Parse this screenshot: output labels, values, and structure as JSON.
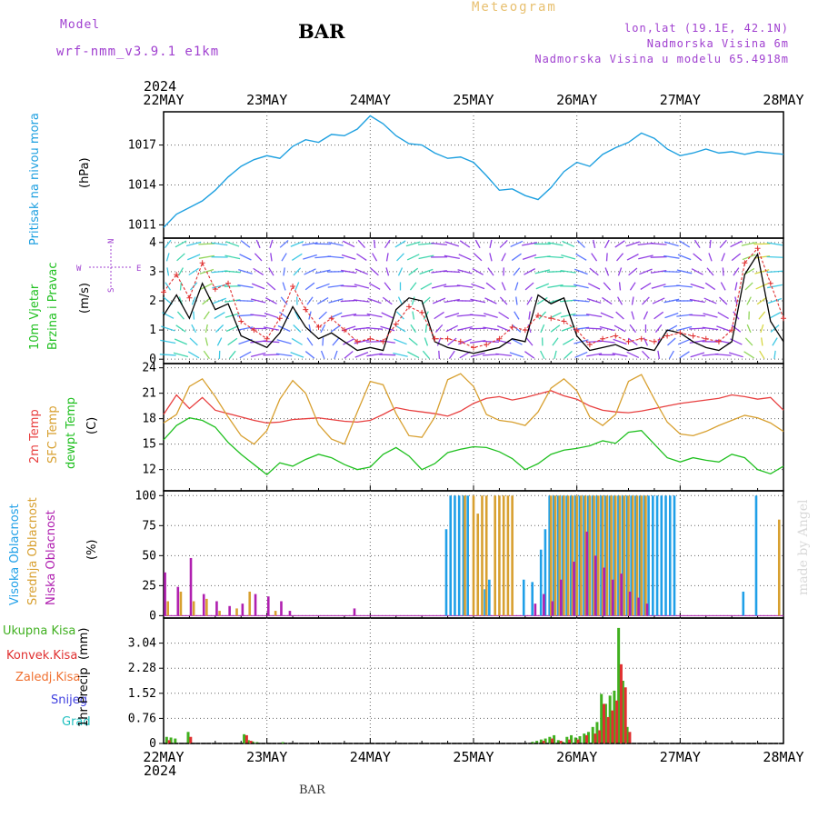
{
  "header": {
    "model_label": "Model",
    "model_name": "wrf-nmm_v3.9.1 e1km",
    "station": "BAR",
    "title": "Meteogram",
    "coords": "lon,lat (19.1E, 42.1N)",
    "altitude": "Nadmorska Visina 6m",
    "model_altitude": "Nadmorska Visina u modelu 65.4918m",
    "footer_station": "BAR",
    "credit": "made by Angel"
  },
  "colors": {
    "pressure": "#1ea0e0",
    "temp2m": "#e84040",
    "sfc_temp": "#d8a030",
    "dewpt": "#20c020",
    "wind_speed": "#000000",
    "gust": "#e03030",
    "high_cloud": "#20a0e8",
    "mid_cloud": "#d8a030",
    "low_cloud": "#b020b0",
    "total_precip": "#40b020",
    "conv_precip": "#e03030",
    "frz_precip": "#f07030",
    "snow": "#4040e0",
    "hail": "#20c0c0",
    "header_purple": "#a040d0",
    "title_gold": "#e8c070"
  },
  "time_axis": {
    "year": "2024",
    "labels": [
      "22MAY",
      "23MAY",
      "24MAY",
      "25MAY",
      "26MAY",
      "27MAY",
      "28MAY"
    ]
  },
  "wind_legend": {
    "n": "N",
    "s": "S",
    "w": "W",
    "e": "E"
  },
  "chart_data": [
    {
      "type": "line",
      "panel": "pressure",
      "ylabel_name": "Pritisak na nivou mora",
      "ylabel_unit": "(hPa)",
      "yticks": [
        "1011",
        "1014",
        "1017"
      ],
      "ylim": [
        1010,
        1019.5
      ],
      "xlim": [
        0,
        144
      ],
      "series": [
        {
          "name": "Pritisak na nivou mora",
          "x": [
            0,
            3,
            6,
            9,
            12,
            15,
            18,
            21,
            24,
            27,
            30,
            33,
            36,
            39,
            42,
            45,
            48,
            51,
            54,
            57,
            60,
            63,
            66,
            69,
            72,
            75,
            78,
            81,
            84,
            87,
            90,
            93,
            96,
            99,
            102,
            105,
            108,
            111,
            114,
            117,
            120,
            123,
            126,
            129,
            132,
            135,
            138,
            141,
            144
          ],
          "y": [
            1010.8,
            1011.8,
            1012.3,
            1012.8,
            1013.6,
            1014.6,
            1015.4,
            1015.9,
            1016.2,
            1016.0,
            1016.9,
            1017.4,
            1017.2,
            1017.8,
            1017.7,
            1018.2,
            1019.2,
            1018.6,
            1017.7,
            1017.1,
            1017.0,
            1016.4,
            1016.0,
            1016.1,
            1015.7,
            1014.7,
            1013.6,
            1013.7,
            1013.2,
            1012.9,
            1013.8,
            1015.0,
            1015.7,
            1015.4,
            1016.3,
            1016.8,
            1017.2,
            1017.9,
            1017.5,
            1016.7,
            1016.2,
            1016.4,
            1016.7,
            1016.4,
            1016.5,
            1016.3,
            1016.5,
            1016.4,
            1016.3
          ]
        }
      ]
    },
    {
      "type": "line",
      "panel": "wind",
      "ylabel_name": "10m Vjetar",
      "ylabel_name2": "Brzina i Pravac",
      "ylabel_unit": "(m/s)",
      "yticks": [
        "0",
        "1",
        "2",
        "3",
        "4"
      ],
      "ylim": [
        -0.15,
        4.15
      ],
      "xlim": [
        0,
        144
      ],
      "series": [
        {
          "name": "Brzina",
          "x": [
            0,
            3,
            6,
            9,
            12,
            15,
            18,
            21,
            24,
            27,
            30,
            33,
            36,
            39,
            42,
            45,
            48,
            51,
            54,
            57,
            60,
            63,
            66,
            69,
            72,
            75,
            78,
            81,
            84,
            87,
            90,
            93,
            96,
            99,
            102,
            105,
            108,
            111,
            114,
            117,
            120,
            123,
            126,
            129,
            132,
            135,
            138,
            141,
            144
          ],
          "y": [
            1.5,
            2.2,
            1.4,
            2.6,
            1.7,
            1.9,
            0.8,
            0.6,
            0.4,
            0.9,
            1.8,
            1.1,
            0.7,
            0.9,
            0.6,
            0.3,
            0.4,
            0.3,
            1.7,
            2.1,
            2.0,
            0.6,
            0.4,
            0.3,
            0.2,
            0.3,
            0.4,
            0.7,
            0.6,
            2.2,
            1.9,
            2.1,
            0.8,
            0.3,
            0.4,
            0.5,
            0.3,
            0.4,
            0.3,
            1.0,
            0.9,
            0.6,
            0.4,
            0.3,
            0.6,
            2.9,
            3.6,
            1.3,
            0.6
          ]
        },
        {
          "name": "Udar",
          "x": [
            0,
            3,
            6,
            9,
            12,
            15,
            18,
            21,
            24,
            27,
            30,
            33,
            36,
            39,
            42,
            45,
            48,
            51,
            54,
            57,
            60,
            63,
            66,
            69,
            72,
            75,
            78,
            81,
            84,
            87,
            90,
            93,
            96,
            99,
            102,
            105,
            108,
            111,
            114,
            117,
            120,
            123,
            126,
            129,
            132,
            135,
            138,
            141,
            144
          ],
          "y": [
            2.3,
            2.9,
            2.1,
            3.3,
            2.4,
            2.6,
            1.3,
            1.0,
            0.7,
            1.4,
            2.5,
            1.7,
            1.1,
            1.4,
            1.0,
            0.6,
            0.7,
            0.6,
            1.2,
            1.8,
            1.6,
            0.7,
            0.7,
            0.6,
            0.4,
            0.5,
            0.7,
            1.1,
            1.0,
            1.5,
            1.4,
            1.3,
            1.0,
            0.5,
            0.7,
            0.8,
            0.6,
            0.7,
            0.6,
            0.8,
            0.9,
            0.8,
            0.7,
            0.6,
            1.0,
            3.3,
            3.8,
            2.6,
            1.4
          ]
        }
      ]
    },
    {
      "type": "line",
      "panel": "temperature",
      "ylabel_name": "2m Temp",
      "ylabel_name2": "SFC Temp",
      "ylabel_name3": "dewpt Temp",
      "ylabel_unit": "(C)",
      "yticks": [
        "12",
        "15",
        "18",
        "21",
        "24"
      ],
      "ylim": [
        9.5,
        24.5
      ],
      "xlim": [
        0,
        144
      ],
      "series": [
        {
          "name": "2m Temp",
          "x": [
            0,
            3,
            6,
            9,
            12,
            15,
            18,
            21,
            24,
            27,
            30,
            33,
            36,
            39,
            42,
            45,
            48,
            51,
            54,
            57,
            60,
            63,
            66,
            69,
            72,
            75,
            78,
            81,
            84,
            87,
            90,
            93,
            96,
            99,
            102,
            105,
            108,
            111,
            114,
            117,
            120,
            123,
            126,
            129,
            132,
            135,
            138,
            141,
            144
          ],
          "y": [
            18.5,
            20.8,
            19.2,
            20.5,
            19.0,
            18.6,
            18.2,
            17.8,
            17.5,
            17.6,
            17.9,
            18.0,
            18.1,
            17.9,
            17.7,
            17.6,
            17.8,
            18.5,
            19.3,
            19.0,
            18.8,
            18.6,
            18.3,
            18.9,
            19.8,
            20.4,
            20.6,
            20.2,
            20.5,
            20.9,
            21.3,
            20.7,
            20.3,
            19.5,
            19.0,
            18.8,
            18.7,
            18.9,
            19.2,
            19.5,
            19.8,
            20.0,
            20.2,
            20.4,
            20.8,
            20.6,
            20.3,
            20.5,
            19.0
          ]
        },
        {
          "name": "SFC Temp",
          "x": [
            0,
            3,
            6,
            9,
            12,
            15,
            18,
            21,
            24,
            27,
            30,
            33,
            36,
            39,
            42,
            45,
            48,
            51,
            54,
            57,
            60,
            63,
            66,
            69,
            72,
            75,
            78,
            81,
            84,
            87,
            90,
            93,
            96,
            99,
            102,
            105,
            108,
            111,
            114,
            117,
            120,
            123,
            126,
            129,
            132,
            135,
            138,
            141,
            144
          ],
          "y": [
            17.5,
            18.5,
            21.8,
            22.7,
            20.6,
            18.2,
            16.0,
            15.0,
            16.6,
            20.3,
            22.5,
            21.0,
            17.3,
            15.6,
            15.0,
            18.8,
            22.4,
            22.0,
            18.6,
            16.0,
            15.8,
            18.2,
            22.6,
            23.3,
            21.8,
            18.5,
            17.8,
            17.6,
            17.2,
            18.8,
            21.6,
            22.7,
            21.3,
            18.2,
            17.2,
            18.5,
            22.4,
            23.2,
            20.3,
            17.6,
            16.2,
            16.0,
            16.5,
            17.2,
            17.8,
            18.4,
            18.1,
            17.5,
            16.5
          ]
        },
        {
          "name": "dewpt Temp",
          "x": [
            0,
            3,
            6,
            9,
            12,
            15,
            18,
            21,
            24,
            27,
            30,
            33,
            36,
            39,
            42,
            45,
            48,
            51,
            54,
            57,
            60,
            63,
            66,
            69,
            72,
            75,
            78,
            81,
            84,
            87,
            90,
            93,
            96,
            99,
            102,
            105,
            108,
            111,
            114,
            117,
            120,
            123,
            126,
            129,
            132,
            135,
            138,
            141,
            144
          ],
          "y": [
            15.5,
            17.2,
            18.1,
            17.8,
            17.0,
            15.2,
            13.8,
            12.6,
            11.4,
            12.8,
            12.4,
            13.2,
            13.8,
            13.4,
            12.6,
            12.0,
            12.3,
            13.8,
            14.6,
            13.6,
            12.0,
            12.7,
            14.0,
            14.4,
            14.7,
            14.6,
            14.1,
            13.3,
            12.0,
            12.7,
            13.8,
            14.3,
            14.5,
            14.8,
            15.4,
            15.1,
            16.4,
            16.6,
            15.0,
            13.4,
            12.9,
            13.4,
            13.1,
            12.9,
            13.8,
            13.4,
            12.0,
            11.5,
            12.4
          ]
        }
      ]
    },
    {
      "type": "bar",
      "panel": "clouds",
      "ylabel_name": "Visoka Oblacnost",
      "ylabel_name2": "Srednja Oblacnost",
      "ylabel_name3": "Niska Oblacnost",
      "ylabel_unit": "(%)",
      "yticks": [
        "0",
        "25",
        "50",
        "75",
        "100"
      ],
      "ylim": [
        -2,
        104
      ],
      "xlim": [
        0,
        144
      ],
      "series": [
        {
          "name": "Visoka Oblacnost",
          "x": [
            66,
            67,
            68,
            69,
            70,
            71,
            75,
            76,
            84,
            86,
            88,
            89,
            90,
            91,
            92,
            93,
            94,
            95,
            96,
            97,
            98,
            99,
            100,
            101,
            102,
            103,
            104,
            105,
            106,
            107,
            108,
            109,
            110,
            111,
            112,
            113,
            114,
            115,
            116,
            117,
            118,
            119,
            135,
            138
          ],
          "y": [
            72,
            100,
            100,
            100,
            100,
            100,
            22,
            30,
            30,
            28,
            55,
            72,
            100,
            100,
            100,
            100,
            100,
            100,
            100,
            100,
            100,
            100,
            100,
            100,
            100,
            100,
            100,
            100,
            100,
            100,
            100,
            100,
            100,
            100,
            100,
            100,
            100,
            100,
            100,
            100,
            100,
            100,
            20,
            100
          ]
        },
        {
          "name": "Srednja Oblacnost",
          "x": [
            1,
            4,
            7,
            10,
            13,
            17,
            20,
            26,
            70,
            72,
            73,
            74,
            75,
            77,
            78,
            79,
            80,
            81,
            90,
            91,
            92,
            93,
            94,
            95,
            96,
            97,
            98,
            99,
            100,
            101,
            102,
            103,
            104,
            105,
            106,
            107,
            108,
            109,
            110,
            111,
            112,
            143
          ],
          "y": [
            12,
            20,
            12,
            14,
            4,
            6,
            20,
            4,
            100,
            100,
            85,
            100,
            100,
            100,
            100,
            100,
            100,
            100,
            100,
            100,
            100,
            100,
            100,
            100,
            100,
            100,
            100,
            100,
            100,
            100,
            100,
            100,
            100,
            100,
            100,
            100,
            100,
            100,
            100,
            100,
            100,
            80
          ]
        },
        {
          "name": "Niska Oblacnost",
          "x": [
            0,
            3,
            6,
            9,
            12,
            15,
            18,
            21,
            24,
            27,
            29,
            44,
            86,
            88,
            90,
            92,
            95,
            98,
            100,
            102,
            104,
            106,
            108,
            110,
            112
          ],
          "y": [
            36,
            24,
            48,
            18,
            12,
            8,
            10,
            18,
            16,
            12,
            4,
            6,
            10,
            18,
            12,
            30,
            45,
            70,
            50,
            40,
            30,
            35,
            20,
            15,
            10
          ]
        }
      ]
    },
    {
      "type": "bar",
      "panel": "precip",
      "ylabel_name": "1hr Precip",
      "ylabel_unit": "(mm)",
      "legend": [
        "Ukupna Kisa",
        "Konvek.Kisa",
        "Zaledj.Kisa",
        "Snijeg",
        "Grad"
      ],
      "yticks": [
        "0",
        "0.76",
        "1.52",
        "2.28",
        "3.04"
      ],
      "ylim": [
        0,
        3.8
      ],
      "xlim": [
        0,
        144
      ],
      "series": [
        {
          "name": "Ukupna Kisa",
          "x": [
            1,
            2,
            3,
            6,
            19,
            20,
            21,
            22,
            28,
            86,
            87,
            88,
            89,
            90,
            91,
            92,
            93,
            94,
            95,
            96,
            97,
            98,
            99,
            100,
            101,
            102,
            103,
            104,
            105,
            106,
            107,
            108
          ],
          "y": [
            0.2,
            0.18,
            0.15,
            0.35,
            0.28,
            0.1,
            0.06,
            0.04,
            0.04,
            0.05,
            0.08,
            0.12,
            0.15,
            0.2,
            0.25,
            0.1,
            0.05,
            0.2,
            0.25,
            0.18,
            0.22,
            0.3,
            0.35,
            0.5,
            0.65,
            1.5,
            1.2,
            1.45,
            1.6,
            3.5,
            1.9,
            0.5
          ]
        },
        {
          "name": "Konvek.Kisa",
          "x": [
            1,
            6,
            19,
            20,
            88,
            90,
            92,
            94,
            96,
            98,
            100,
            101,
            102,
            103,
            104,
            105,
            106,
            107,
            108
          ],
          "y": [
            0.1,
            0.2,
            0.25,
            0.08,
            0.08,
            0.15,
            0.08,
            0.12,
            0.12,
            0.25,
            0.3,
            0.4,
            1.2,
            0.8,
            1.0,
            1.3,
            2.4,
            1.7,
            0.35
          ]
        }
      ]
    }
  ]
}
